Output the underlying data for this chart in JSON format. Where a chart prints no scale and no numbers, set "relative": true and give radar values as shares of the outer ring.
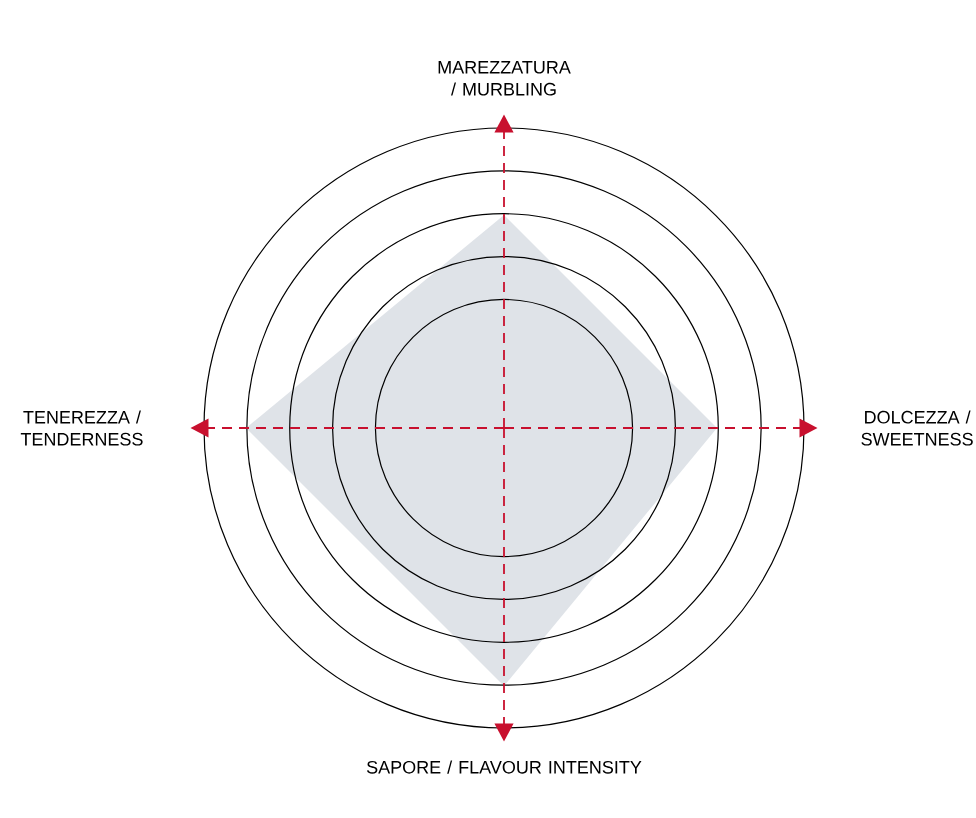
{
  "chart_data": {
    "type": "radar",
    "relative": true,
    "grid": true,
    "marker": "none",
    "categories": [
      "MAREZZATURA / MURBLING",
      "DOLCEZZA / SWEETNESS",
      "SAPORE / FLAVOUR INTENSITY",
      "TENEREZZA / TENDERNESS"
    ],
    "series": [
      {
        "color": "#dfe3e8",
        "values": [
          0.71,
          0.71,
          0.86,
          0.86
        ]
      }
    ]
  }
}
